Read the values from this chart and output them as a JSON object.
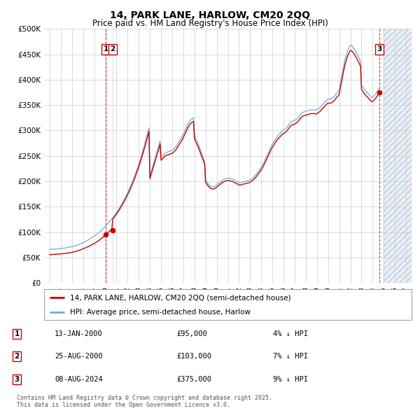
{
  "title": "14, PARK LANE, HARLOW, CM20 2QQ",
  "subtitle": "Price paid vs. HM Land Registry's House Price Index (HPI)",
  "ylim": [
    0,
    500000
  ],
  "yticks": [
    0,
    50000,
    100000,
    150000,
    200000,
    250000,
    300000,
    350000,
    400000,
    450000,
    500000
  ],
  "ytick_labels": [
    "£0",
    "£50K",
    "£100K",
    "£150K",
    "£200K",
    "£250K",
    "£300K",
    "£350K",
    "£400K",
    "£450K",
    "£500K"
  ],
  "xlim_start": 1994.5,
  "xlim_end": 2027.5,
  "hpi_color": "#6baed6",
  "price_color": "#cc0000",
  "bg_color": "#ffffff",
  "grid_color": "#cccccc",
  "legend_label_red": "14, PARK LANE, HARLOW, CM20 2QQ (semi-detached house)",
  "legend_label_blue": "HPI: Average price, semi-detached house, Harlow",
  "transactions": [
    {
      "num": 1,
      "date": "13-JAN-2000",
      "price": 95000,
      "pct": "4%",
      "dir": "↓",
      "x_year": 2000.04
    },
    {
      "num": 2,
      "date": "25-AUG-2000",
      "price": 103000,
      "pct": "7%",
      "dir": "↓",
      "x_year": 2000.65
    },
    {
      "num": 3,
      "date": "08-AUG-2024",
      "price": 375000,
      "pct": "9%",
      "dir": "↓",
      "x_year": 2024.6
    }
  ],
  "footnote": "Contains HM Land Registry data © Crown copyright and database right 2025.\nThis data is licensed under the Open Government Licence v3.0.",
  "hpi_data": {
    "years": [
      1995.0,
      1995.083,
      1995.167,
      1995.25,
      1995.333,
      1995.417,
      1995.5,
      1995.583,
      1995.667,
      1995.75,
      1995.833,
      1995.917,
      1996.0,
      1996.083,
      1996.167,
      1996.25,
      1996.333,
      1996.417,
      1996.5,
      1996.583,
      1996.667,
      1996.75,
      1996.833,
      1996.917,
      1997.0,
      1997.083,
      1997.167,
      1997.25,
      1997.333,
      1997.417,
      1997.5,
      1997.583,
      1997.667,
      1997.75,
      1997.833,
      1997.917,
      1998.0,
      1998.083,
      1998.167,
      1998.25,
      1998.333,
      1998.417,
      1998.5,
      1998.583,
      1998.667,
      1998.75,
      1998.833,
      1998.917,
      1999.0,
      1999.083,
      1999.167,
      1999.25,
      1999.333,
      1999.417,
      1999.5,
      1999.583,
      1999.667,
      1999.75,
      1999.833,
      1999.917,
      2000.0,
      2000.083,
      2000.167,
      2000.25,
      2000.333,
      2000.417,
      2000.5,
      2000.583,
      2000.667,
      2000.75,
      2000.833,
      2000.917,
      2001.0,
      2001.083,
      2001.167,
      2001.25,
      2001.333,
      2001.417,
      2001.5,
      2001.583,
      2001.667,
      2001.75,
      2001.833,
      2001.917,
      2002.0,
      2002.083,
      2002.167,
      2002.25,
      2002.333,
      2002.417,
      2002.5,
      2002.583,
      2002.667,
      2002.75,
      2002.833,
      2002.917,
      2003.0,
      2003.083,
      2003.167,
      2003.25,
      2003.333,
      2003.417,
      2003.5,
      2003.583,
      2003.667,
      2003.75,
      2003.833,
      2003.917,
      2004.0,
      2004.083,
      2004.167,
      2004.25,
      2004.333,
      2004.417,
      2004.5,
      2004.583,
      2004.667,
      2004.75,
      2004.833,
      2004.917,
      2005.0,
      2005.083,
      2005.167,
      2005.25,
      2005.333,
      2005.417,
      2005.5,
      2005.583,
      2005.667,
      2005.75,
      2005.833,
      2005.917,
      2006.0,
      2006.083,
      2006.167,
      2006.25,
      2006.333,
      2006.417,
      2006.5,
      2006.583,
      2006.667,
      2006.75,
      2006.833,
      2006.917,
      2007.0,
      2007.083,
      2007.167,
      2007.25,
      2007.333,
      2007.417,
      2007.5,
      2007.583,
      2007.667,
      2007.75,
      2007.833,
      2007.917,
      2008.0,
      2008.083,
      2008.167,
      2008.25,
      2008.333,
      2008.417,
      2008.5,
      2008.583,
      2008.667,
      2008.75,
      2008.833,
      2008.917,
      2009.0,
      2009.083,
      2009.167,
      2009.25,
      2009.333,
      2009.417,
      2009.5,
      2009.583,
      2009.667,
      2009.75,
      2009.833,
      2009.917,
      2010.0,
      2010.083,
      2010.167,
      2010.25,
      2010.333,
      2010.417,
      2010.5,
      2010.583,
      2010.667,
      2010.75,
      2010.833,
      2010.917,
      2011.0,
      2011.083,
      2011.167,
      2011.25,
      2011.333,
      2011.417,
      2011.5,
      2011.583,
      2011.667,
      2011.75,
      2011.833,
      2011.917,
      2012.0,
      2012.083,
      2012.167,
      2012.25,
      2012.333,
      2012.417,
      2012.5,
      2012.583,
      2012.667,
      2012.75,
      2012.833,
      2012.917,
      2013.0,
      2013.083,
      2013.167,
      2013.25,
      2013.333,
      2013.417,
      2013.5,
      2013.583,
      2013.667,
      2013.75,
      2013.833,
      2013.917,
      2014.0,
      2014.083,
      2014.167,
      2014.25,
      2014.333,
      2014.417,
      2014.5,
      2014.583,
      2014.667,
      2014.75,
      2014.833,
      2014.917,
      2015.0,
      2015.083,
      2015.167,
      2015.25,
      2015.333,
      2015.417,
      2015.5,
      2015.583,
      2015.667,
      2015.75,
      2015.833,
      2015.917,
      2016.0,
      2016.083,
      2016.167,
      2016.25,
      2016.333,
      2016.417,
      2016.5,
      2016.583,
      2016.667,
      2016.75,
      2016.833,
      2016.917,
      2017.0,
      2017.083,
      2017.167,
      2017.25,
      2017.333,
      2017.417,
      2017.5,
      2017.583,
      2017.667,
      2017.75,
      2017.833,
      2017.917,
      2018.0,
      2018.083,
      2018.167,
      2018.25,
      2018.333,
      2018.417,
      2018.5,
      2018.583,
      2018.667,
      2018.75,
      2018.833,
      2018.917,
      2019.0,
      2019.083,
      2019.167,
      2019.25,
      2019.333,
      2019.417,
      2019.5,
      2019.583,
      2019.667,
      2019.75,
      2019.833,
      2019.917,
      2020.0,
      2020.083,
      2020.167,
      2020.25,
      2020.333,
      2020.417,
      2020.5,
      2020.583,
      2020.667,
      2020.75,
      2020.833,
      2020.917,
      2021.0,
      2021.083,
      2021.167,
      2021.25,
      2021.333,
      2021.417,
      2021.5,
      2021.583,
      2021.667,
      2021.75,
      2021.833,
      2021.917,
      2022.0,
      2022.083,
      2022.167,
      2022.25,
      2022.333,
      2022.417,
      2022.5,
      2022.583,
      2022.667,
      2022.75,
      2022.833,
      2022.917,
      2023.0,
      2023.083,
      2023.167,
      2023.25,
      2023.333,
      2023.417,
      2023.5,
      2023.583,
      2023.667,
      2023.75,
      2023.833,
      2023.917,
      2024.0,
      2024.083,
      2024.167,
      2024.25,
      2024.333,
      2024.417,
      2024.5,
      2024.583,
      2024.667
    ],
    "values": [
      66000,
      66200,
      66100,
      66300,
      66500,
      66600,
      66800,
      66900,
      67000,
      67100,
      67300,
      67400,
      67600,
      67800,
      68000,
      68300,
      68500,
      68800,
      69100,
      69400,
      69700,
      70000,
      70400,
      70800,
      71200,
      71700,
      72200,
      72800,
      73400,
      74000,
      74700,
      75400,
      76100,
      76900,
      77700,
      78500,
      79400,
      80300,
      81200,
      82100,
      83100,
      84100,
      85100,
      86200,
      87300,
      88400,
      89600,
      90800,
      92000,
      93300,
      94600,
      96000,
      97500,
      99000,
      100600,
      102300,
      104000,
      105800,
      107700,
      109600,
      111600,
      113500,
      115500,
      117500,
      119600,
      121700,
      123900,
      126200,
      128500,
      130900,
      133400,
      136000,
      138700,
      141400,
      144200,
      147100,
      150100,
      153200,
      156400,
      159700,
      163100,
      166600,
      170200,
      173900,
      177700,
      181600,
      185600,
      189700,
      194000,
      198400,
      203000,
      207700,
      212600,
      217600,
      222800,
      228200,
      233700,
      239400,
      245300,
      251400,
      257600,
      263900,
      270400,
      277100,
      284000,
      290900,
      297900,
      305100,
      210000,
      216300,
      222600,
      229000,
      235500,
      241900,
      248300,
      254600,
      260900,
      267100,
      273200,
      279300,
      247000,
      249000,
      251000,
      253000,
      255000,
      256000,
      257000,
      258000,
      258500,
      259000,
      259500,
      260000,
      261000,
      262000,
      264000,
      266000,
      268000,
      271000,
      274000,
      277000,
      280000,
      283000,
      286000,
      289000,
      293000,
      297000,
      301000,
      305000,
      309000,
      313000,
      316000,
      319000,
      321000,
      323000,
      324000,
      325000,
      290000,
      286000,
      282000,
      278000,
      274000,
      269000,
      264000,
      259000,
      254000,
      249000,
      244000,
      239000,
      203000,
      200000,
      197000,
      195000,
      193000,
      191000,
      190000,
      189500,
      189000,
      189500,
      190500,
      191500,
      193000,
      194500,
      196000,
      197500,
      199000,
      200500,
      202000,
      203000,
      204000,
      205000,
      205500,
      206000,
      206000,
      206000,
      206000,
      205500,
      205000,
      204500,
      203500,
      202500,
      201500,
      200500,
      199500,
      198500,
      197000,
      197000,
      197500,
      198000,
      198500,
      199000,
      199500,
      200000,
      200500,
      201000,
      201500,
      202000,
      203000,
      204000,
      205500,
      207000,
      208500,
      210500,
      212500,
      215000,
      217500,
      220000,
      222500,
      225000,
      228000,
      231000,
      234500,
      238000,
      242000,
      246000,
      250000,
      254000,
      258000,
      262000,
      266000,
      270000,
      273000,
      276000,
      279000,
      282000,
      285000,
      288000,
      290000,
      292000,
      294000,
      296000,
      298000,
      300000,
      301000,
      302000,
      303500,
      305000,
      307000,
      309500,
      312000,
      314500,
      317000,
      318000,
      318500,
      319000,
      320000,
      321000,
      322500,
      324000,
      326000,
      328500,
      331000,
      333000,
      335000,
      336000,
      336500,
      337000,
      338000,
      338500,
      339000,
      339500,
      340000,
      340500,
      341000,
      341000,
      341000,
      341000,
      340500,
      340000,
      341000,
      342000,
      343500,
      345000,
      347000,
      349000,
      351000,
      353000,
      355000,
      357000,
      359000,
      361000,
      362000,
      362000,
      362000,
      362000,
      363000,
      364500,
      366000,
      368000,
      370500,
      373000,
      375000,
      377000,
      380000,
      390000,
      400000,
      410000,
      420000,
      429000,
      438000,
      445000,
      451000,
      457000,
      461000,
      465000,
      468000,
      468000,
      466000,
      464000,
      461000,
      458000,
      455000,
      452000,
      448000,
      444000,
      440000,
      436000,
      390000,
      387000,
      384000,
      381000,
      379000,
      377000,
      375000,
      373000,
      371000,
      369000,
      367000,
      365000,
      365000,
      367000,
      369000,
      371000,
      374000,
      377000,
      380000,
      383000,
      386000
    ]
  },
  "sale1_x": 2000.04,
  "sale1_price": 95000,
  "sale2_x": 2000.65,
  "sale2_price": 103000,
  "sale3_x": 2024.6,
  "sale3_price": 375000,
  "future_shade_start": 2025.0,
  "future_shade_end": 2027.5
}
